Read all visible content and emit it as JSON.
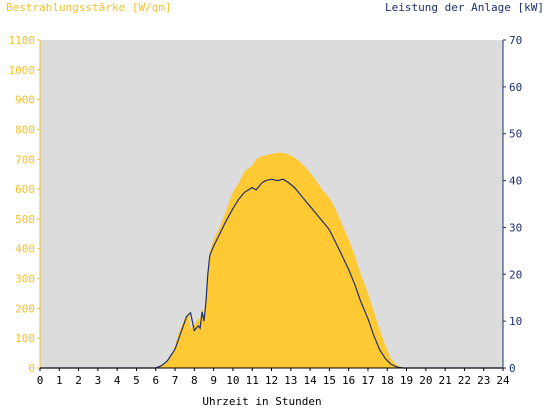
{
  "chart_data": {
    "type": "area",
    "title_left": "Bestrahlungsstärke [W/qm]",
    "title_right": "Leistung der Anlage [kW]",
    "xlabel": "Uhrzeit in Stunden",
    "x_ticks": [
      "0",
      "1",
      "2",
      "3",
      "4",
      "5",
      "6",
      "7",
      "8",
      "9",
      "10",
      "11",
      "12",
      "13",
      "14",
      "15",
      "16",
      "17",
      "18",
      "19",
      "20",
      "21",
      "22",
      "23",
      "24"
    ],
    "xlim": [
      0,
      24
    ],
    "ylim_left": [
      0,
      1100
    ],
    "ylim_right": [
      0,
      70
    ],
    "y_ticks_left": [
      "0",
      "100",
      "200",
      "300",
      "400",
      "500",
      "600",
      "700",
      "800",
      "900",
      "1000",
      "1100"
    ],
    "y_ticks_right": [
      "0",
      "10",
      "20",
      "30",
      "40",
      "50",
      "60",
      "70"
    ],
    "plot_background": "#dcdcdc",
    "colors": {
      "irradiance": "#ffc933",
      "power": "#1d2f6f",
      "left_axis": "#f5c22b",
      "right_axis": "#1d2f6f"
    },
    "series": [
      {
        "axis": "left",
        "style": "area",
        "x": [
          0,
          6.0,
          6.2,
          6.5,
          6.8,
          7.0,
          7.2,
          7.5,
          7.7,
          7.8,
          8.0,
          8.2,
          8.3,
          8.4,
          8.5,
          8.6,
          8.7,
          8.8,
          9.0,
          9.3,
          9.6,
          10.0,
          10.3,
          10.6,
          11.0,
          11.2,
          11.5,
          11.8,
          12.0,
          12.3,
          12.6,
          12.9,
          13.2,
          13.5,
          13.8,
          14.0,
          14.3,
          14.6,
          15.0,
          15.3,
          15.6,
          16.0,
          16.3,
          16.6,
          17.0,
          17.3,
          17.6,
          17.9,
          18.2,
          18.5,
          18.8,
          19.0,
          19.2,
          24
        ],
        "y": [
          0,
          0,
          8,
          20,
          45,
          75,
          120,
          165,
          185,
          130,
          145,
          165,
          160,
          200,
          175,
          220,
          330,
          390,
          430,
          470,
          520,
          590,
          620,
          660,
          680,
          700,
          710,
          715,
          718,
          722,
          722,
          715,
          705,
          690,
          670,
          655,
          630,
          600,
          570,
          535,
          490,
          430,
          380,
          320,
          250,
          190,
          130,
          75,
          30,
          10,
          2,
          0,
          0,
          0
        ]
      },
      {
        "axis": "right",
        "style": "line",
        "x": [
          0,
          6.0,
          6.3,
          6.6,
          7.0,
          7.3,
          7.6,
          7.8,
          8.0,
          8.2,
          8.3,
          8.4,
          8.5,
          8.6,
          8.7,
          8.8,
          9.0,
          9.3,
          9.6,
          10.0,
          10.3,
          10.6,
          11.0,
          11.2,
          11.5,
          11.7,
          12.0,
          12.3,
          12.6,
          12.9,
          13.2,
          13.5,
          13.8,
          14.0,
          14.3,
          14.6,
          15.0,
          15.3,
          15.6,
          16.0,
          16.3,
          16.6,
          17.0,
          17.3,
          17.6,
          17.9,
          18.2,
          18.5,
          18.8,
          19.0,
          24
        ],
        "y": [
          0,
          0,
          0.5,
          1.5,
          4,
          7.5,
          11,
          11.8,
          8,
          9,
          8.5,
          12,
          10,
          14,
          20,
          24,
          26,
          28.5,
          31,
          34,
          36,
          37.5,
          38.5,
          38,
          39.5,
          40,
          40.3,
          40,
          40.3,
          39.5,
          38.5,
          37,
          35.5,
          34.5,
          33,
          31.5,
          29.5,
          27,
          24.5,
          21,
          18,
          14.5,
          10.5,
          7,
          4,
          2,
          0.8,
          0.2,
          0,
          0,
          0
        ]
      }
    ]
  }
}
